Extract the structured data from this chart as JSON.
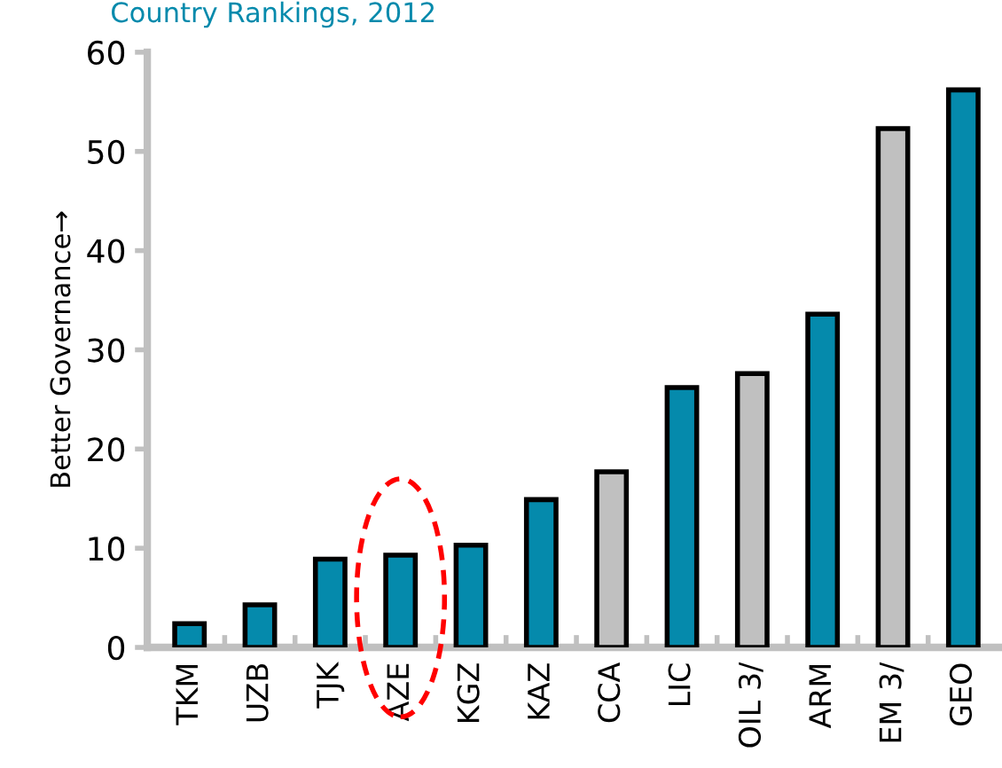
{
  "chart_data": {
    "type": "bar",
    "title": "Country Rankings, 2012",
    "ylabel": "Better Governance→",
    "categories": [
      "TKM",
      "UZB",
      "TJK",
      "AZE",
      "KGZ",
      "KAZ",
      "CCA",
      "LIC",
      "OIL 3/",
      "ARM",
      "EM 3/",
      "GEO"
    ],
    "values": [
      2.4,
      4.3,
      8.9,
      9.3,
      10.3,
      14.9,
      17.7,
      26.2,
      27.6,
      33.6,
      52.3,
      56.2
    ],
    "colors": [
      "#058aac",
      "#058aac",
      "#058aac",
      "#058aac",
      "#058aac",
      "#058aac",
      "#c0c0c0",
      "#058aac",
      "#c0c0c0",
      "#058aac",
      "#c0c0c0",
      "#058aac"
    ],
    "ylim": [
      0,
      60
    ],
    "yticks": [
      0,
      10,
      20,
      30,
      40,
      50,
      60
    ],
    "grid": false
  }
}
